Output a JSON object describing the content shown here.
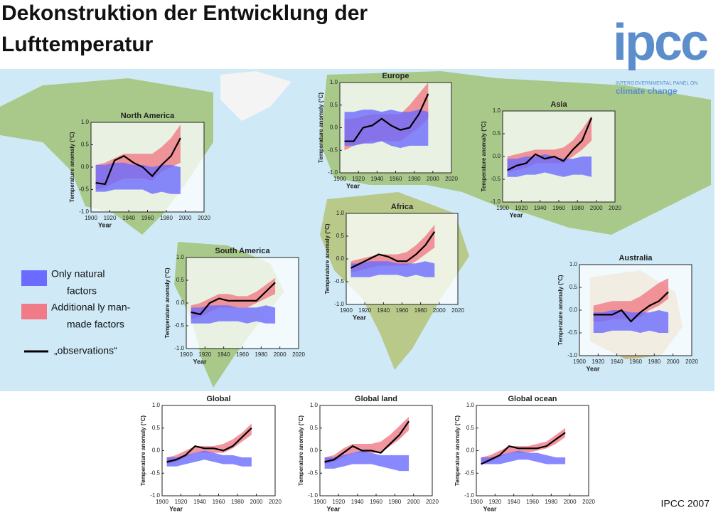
{
  "title": [
    "Dekonstruktion der Entwicklung der",
    "Lufttemperatur"
  ],
  "logo": {
    "name": "ipcc",
    "line1": "INTERGOVERNMENTAL PANEL ON",
    "line2": "climate change"
  },
  "credit": "IPCC 2007",
  "legend": [
    {
      "lines": [
        "Only natural",
        "factors"
      ],
      "color": "#6b6bff"
    },
    {
      "lines": [
        "Additional ly man-",
        "made factors"
      ],
      "color": "#f07a86"
    },
    {
      "lines": [
        "„observations“"
      ],
      "color": "#000000"
    }
  ],
  "chart_data": [
    {
      "type": "line",
      "title": "North America",
      "xlabel": "Year",
      "ylabel": "Temperature anomaly (°C)",
      "xlim": [
        1900,
        2020
      ],
      "xticks": [
        1900,
        1920,
        1940,
        1960,
        1980,
        2000,
        2020
      ],
      "ylim": [
        -1,
        1
      ],
      "yticks": [
        {
          "value": -1,
          "label": "-1.0"
        },
        {
          "value": -0.5,
          "label": "-0.5"
        },
        {
          "value": 0,
          "label": "0.0"
        },
        {
          "value": 0.5,
          "label": "0.5"
        },
        {
          "value": 1,
          "label": "1.0"
        }
      ],
      "x": [
        1905,
        1915,
        1925,
        1935,
        1945,
        1955,
        1965,
        1975,
        1985,
        1995
      ],
      "series": [
        {
          "color": "#f07a86",
          "lower": [
            -0.5,
            -0.45,
            -0.35,
            -0.25,
            -0.25,
            -0.25,
            -0.3,
            -0.1,
            0.0,
            0.1
          ],
          "upper": [
            0.05,
            0.1,
            0.2,
            0.3,
            0.3,
            0.3,
            0.3,
            0.45,
            0.65,
            0.95
          ]
        },
        {
          "color": "#6b6bff",
          "lower": [
            -0.55,
            -0.55,
            -0.5,
            -0.5,
            -0.5,
            -0.5,
            -0.6,
            -0.55,
            -0.6,
            -0.6
          ],
          "upper": [
            0.05,
            0.05,
            0.1,
            0.1,
            0.05,
            0.05,
            0.0,
            0.05,
            0.05,
            0.0
          ]
        },
        {
          "color": "#000000",
          "values": [
            -0.35,
            -0.38,
            0.15,
            0.25,
            0.1,
            0.0,
            -0.2,
            0.05,
            0.25,
            0.65
          ]
        }
      ]
    },
    {
      "type": "line",
      "title": "Europe",
      "xlabel": "Year",
      "ylabel": "Temperature anomaly (°C)",
      "xlim": [
        1900,
        2020
      ],
      "xticks": [
        1900,
        1920,
        1940,
        1960,
        1980,
        2000,
        2020
      ],
      "ylim": [
        -1,
        1
      ],
      "yticks": [
        {
          "value": -1,
          "label": "-1.0"
        },
        {
          "value": -0.5,
          "label": "-0.5"
        },
        {
          "value": 0,
          "label": "0.0"
        },
        {
          "value": 0.5,
          "label": "0.5"
        },
        {
          "value": 1,
          "label": "1.0"
        }
      ],
      "x": [
        1905,
        1915,
        1925,
        1935,
        1945,
        1955,
        1965,
        1975,
        1985,
        1995
      ],
      "series": [
        {
          "color": "#f07a86",
          "lower": [
            -0.5,
            -0.4,
            -0.35,
            -0.3,
            -0.3,
            -0.3,
            -0.3,
            -0.15,
            0.0,
            0.2
          ],
          "upper": [
            0.2,
            0.2,
            0.25,
            0.3,
            0.3,
            0.3,
            0.3,
            0.5,
            0.75,
            1.0
          ]
        },
        {
          "color": "#6b6bff",
          "lower": [
            -0.4,
            -0.4,
            -0.35,
            -0.35,
            -0.3,
            -0.4,
            -0.45,
            -0.4,
            -0.4,
            -0.4
          ],
          "upper": [
            0.35,
            0.35,
            0.4,
            0.4,
            0.35,
            0.4,
            0.35,
            0.35,
            0.4,
            0.35
          ]
        },
        {
          "color": "#000000",
          "values": [
            -0.3,
            -0.3,
            0.0,
            0.05,
            0.2,
            0.05,
            -0.05,
            0.0,
            0.3,
            0.75
          ]
        }
      ]
    },
    {
      "type": "line",
      "title": "Asia",
      "xlabel": "Year",
      "ylabel": "Temperature anomaly (°C)",
      "xlim": [
        1900,
        2020
      ],
      "xticks": [
        1900,
        1920,
        1940,
        1960,
        1980,
        2000,
        2020
      ],
      "ylim": [
        -1,
        1
      ],
      "yticks": [
        {
          "value": -1,
          "label": "-1.0"
        },
        {
          "value": -0.5,
          "label": "-0.5"
        },
        {
          "value": 0,
          "label": "0.0"
        },
        {
          "value": 0.5,
          "label": "0.5"
        },
        {
          "value": 1,
          "label": "1.0"
        }
      ],
      "x": [
        1905,
        1915,
        1925,
        1935,
        1945,
        1955,
        1965,
        1975,
        1985,
        1995
      ],
      "series": [
        {
          "color": "#f07a86",
          "lower": [
            -0.35,
            -0.3,
            -0.25,
            -0.15,
            -0.15,
            -0.15,
            -0.15,
            0.0,
            0.15,
            0.35
          ],
          "upper": [
            0.0,
            0.05,
            0.1,
            0.15,
            0.15,
            0.15,
            0.2,
            0.35,
            0.6,
            0.9
          ]
        },
        {
          "color": "#6b6bff",
          "lower": [
            -0.45,
            -0.45,
            -0.4,
            -0.4,
            -0.35,
            -0.4,
            -0.45,
            -0.4,
            -0.4,
            -0.45
          ],
          "upper": [
            -0.05,
            -0.05,
            0.0,
            0.0,
            0.05,
            0.0,
            -0.05,
            -0.05,
            0.0,
            0.0
          ]
        },
        {
          "color": "#000000",
          "values": [
            -0.3,
            -0.2,
            -0.15,
            0.05,
            -0.05,
            0.0,
            -0.1,
            0.15,
            0.35,
            0.85
          ]
        }
      ]
    },
    {
      "type": "line",
      "title": "Africa",
      "xlabel": "Year",
      "ylabel": "Temperature anomaly (°C)",
      "xlim": [
        1900,
        2020
      ],
      "xticks": [
        1900,
        1920,
        1940,
        1960,
        1980,
        2000,
        2020
      ],
      "ylim": [
        -1,
        1
      ],
      "yticks": [
        {
          "value": -1,
          "label": "-1.0"
        },
        {
          "value": -0.5,
          "label": "-0.5"
        },
        {
          "value": 0,
          "label": "0.0"
        },
        {
          "value": 0.5,
          "label": "0.5"
        },
        {
          "value": 1,
          "label": "1.0"
        }
      ],
      "x": [
        1905,
        1915,
        1925,
        1935,
        1945,
        1955,
        1965,
        1975,
        1985,
        1995
      ],
      "series": [
        {
          "color": "#f07a86",
          "lower": [
            -0.3,
            -0.25,
            -0.2,
            -0.15,
            -0.15,
            -0.15,
            -0.15,
            -0.05,
            0.1,
            0.25
          ],
          "upper": [
            -0.05,
            0.0,
            0.05,
            0.1,
            0.1,
            0.1,
            0.15,
            0.3,
            0.5,
            0.75
          ]
        },
        {
          "color": "#6b6bff",
          "lower": [
            -0.4,
            -0.4,
            -0.4,
            -0.35,
            -0.35,
            -0.35,
            -0.4,
            -0.35,
            -0.4,
            -0.4
          ],
          "upper": [
            -0.1,
            -0.1,
            -0.05,
            -0.05,
            -0.05,
            -0.1,
            -0.1,
            -0.1,
            -0.05,
            -0.1
          ]
        },
        {
          "color": "#000000",
          "values": [
            -0.2,
            -0.1,
            0.0,
            0.1,
            0.05,
            -0.05,
            -0.05,
            0.1,
            0.3,
            0.6
          ]
        }
      ]
    },
    {
      "type": "line",
      "title": "South America",
      "xlabel": "Year",
      "ylabel": "Temperature anomaly (°C)",
      "xlim": [
        1900,
        2020
      ],
      "xticks": [
        1900,
        1920,
        1940,
        1960,
        1980,
        2000,
        2020
      ],
      "ylim": [
        -1,
        1
      ],
      "yticks": [
        {
          "value": -1,
          "label": "-1.0"
        },
        {
          "value": -0.5,
          "label": "-0.5"
        },
        {
          "value": 0,
          "label": "0.0"
        },
        {
          "value": 0.5,
          "label": "0.5"
        },
        {
          "value": 1,
          "label": "1.0"
        }
      ],
      "x": [
        1905,
        1915,
        1925,
        1935,
        1945,
        1955,
        1965,
        1975,
        1985,
        1995
      ],
      "series": [
        {
          "color": "#f07a86",
          "lower": [
            -0.35,
            -0.3,
            -0.2,
            -0.1,
            -0.1,
            -0.1,
            -0.1,
            0.0,
            0.1,
            0.2
          ],
          "upper": [
            -0.05,
            0.0,
            0.1,
            0.2,
            0.2,
            0.15,
            0.15,
            0.25,
            0.4,
            0.55
          ]
        },
        {
          "color": "#6b6bff",
          "lower": [
            -0.45,
            -0.45,
            -0.45,
            -0.4,
            -0.4,
            -0.4,
            -0.45,
            -0.4,
            -0.45,
            -0.45
          ],
          "upper": [
            -0.1,
            -0.1,
            -0.05,
            -0.05,
            -0.05,
            -0.1,
            -0.1,
            -0.1,
            -0.05,
            -0.1
          ]
        },
        {
          "color": "#000000",
          "values": [
            -0.2,
            -0.25,
            0.0,
            0.1,
            0.05,
            0.05,
            0.05,
            0.05,
            0.25,
            0.45
          ]
        }
      ]
    },
    {
      "type": "line",
      "title": "Australia",
      "xlabel": "Year",
      "ylabel": "Temperature anomaly (°C)",
      "xlim": [
        1900,
        2020
      ],
      "xticks": [
        1900,
        1920,
        1940,
        1960,
        1980,
        2000,
        2020
      ],
      "ylim": [
        -1,
        1
      ],
      "yticks": [
        {
          "value": -1,
          "label": "-1.0"
        },
        {
          "value": -0.5,
          "label": "-0.5"
        },
        {
          "value": 0,
          "label": "0.0"
        },
        {
          "value": 0.5,
          "label": "0.5"
        },
        {
          "value": 1,
          "label": "1.0"
        }
      ],
      "x": [
        1915,
        1925,
        1935,
        1945,
        1955,
        1965,
        1975,
        1985,
        1995
      ],
      "series": [
        {
          "color": "#f07a86",
          "lower": [
            -0.25,
            -0.25,
            -0.2,
            -0.2,
            -0.2,
            -0.15,
            0.0,
            0.1,
            0.25
          ],
          "upper": [
            0.1,
            0.15,
            0.2,
            0.2,
            0.2,
            0.3,
            0.45,
            0.6,
            0.7
          ]
        },
        {
          "color": "#6b6bff",
          "lower": [
            -0.5,
            -0.5,
            -0.45,
            -0.45,
            -0.45,
            -0.5,
            -0.45,
            -0.5,
            -0.5
          ],
          "upper": [
            -0.05,
            -0.05,
            0.0,
            0.0,
            -0.05,
            -0.05,
            -0.05,
            0.0,
            -0.05
          ]
        },
        {
          "color": "#000000",
          "values": [
            -0.1,
            -0.1,
            -0.1,
            0.0,
            -0.25,
            -0.05,
            0.1,
            0.2,
            0.4
          ]
        }
      ]
    },
    {
      "type": "line",
      "title": "Global",
      "xlabel": "Year",
      "ylabel": "Temperature anomaly (°C)",
      "xlim": [
        1900,
        2020
      ],
      "xticks": [
        1900,
        1920,
        1940,
        1960,
        1980,
        2000,
        2020
      ],
      "ylim": [
        -1,
        1
      ],
      "yticks": [
        {
          "value": -1,
          "label": "-1.0"
        },
        {
          "value": -0.5,
          "label": "-0.5"
        },
        {
          "value": 0,
          "label": "0.0"
        },
        {
          "value": 0.5,
          "label": "0.5"
        },
        {
          "value": 1,
          "label": "1.0"
        }
      ],
      "x": [
        1905,
        1915,
        1925,
        1935,
        1945,
        1955,
        1965,
        1975,
        1985,
        1995
      ],
      "series": [
        {
          "color": "#f07a86",
          "lower": [
            -0.3,
            -0.25,
            -0.15,
            -0.05,
            -0.05,
            -0.05,
            -0.05,
            0.05,
            0.2,
            0.35
          ],
          "upper": [
            -0.15,
            -0.1,
            0.0,
            0.1,
            0.1,
            0.1,
            0.15,
            0.25,
            0.4,
            0.6
          ]
        },
        {
          "color": "#6b6bff",
          "lower": [
            -0.35,
            -0.35,
            -0.3,
            -0.25,
            -0.2,
            -0.25,
            -0.3,
            -0.3,
            -0.35,
            -0.35
          ],
          "upper": [
            -0.15,
            -0.15,
            -0.1,
            -0.05,
            0.0,
            -0.05,
            -0.1,
            -0.1,
            -0.15,
            -0.15
          ]
        },
        {
          "color": "#000000",
          "values": [
            -0.25,
            -0.2,
            -0.1,
            0.1,
            0.05,
            0.05,
            0.0,
            0.1,
            0.3,
            0.5
          ]
        }
      ]
    },
    {
      "type": "line",
      "title": "Global land",
      "xlabel": "Year",
      "ylabel": "Temperature anomaly (°C)",
      "xlim": [
        1900,
        2020
      ],
      "xticks": [
        1900,
        1920,
        1940,
        1960,
        1980,
        2000,
        2020
      ],
      "ylim": [
        -1,
        1
      ],
      "yticks": [
        {
          "value": -1,
          "label": "-1.0"
        },
        {
          "value": -0.5,
          "label": "-0.5"
        },
        {
          "value": 0,
          "label": "0.0"
        },
        {
          "value": 0.5,
          "label": "0.5"
        },
        {
          "value": 1,
          "label": "1.0"
        }
      ],
      "x": [
        1905,
        1915,
        1925,
        1935,
        1945,
        1955,
        1965,
        1975,
        1985,
        1995
      ],
      "series": [
        {
          "color": "#f07a86",
          "lower": [
            -0.3,
            -0.25,
            -0.15,
            -0.05,
            -0.05,
            -0.05,
            -0.05,
            0.1,
            0.25,
            0.45
          ],
          "upper": [
            -0.15,
            -0.1,
            0.05,
            0.15,
            0.15,
            0.15,
            0.2,
            0.35,
            0.55,
            0.75
          ]
        },
        {
          "color": "#6b6bff",
          "lower": [
            -0.4,
            -0.4,
            -0.35,
            -0.3,
            -0.3,
            -0.3,
            -0.35,
            -0.4,
            -0.45,
            -0.45
          ],
          "upper": [
            -0.15,
            -0.15,
            -0.1,
            -0.05,
            0.0,
            -0.05,
            -0.1,
            -0.1,
            -0.1,
            -0.1
          ]
        },
        {
          "color": "#000000",
          "values": [
            -0.25,
            -0.2,
            -0.05,
            0.1,
            0.0,
            0.0,
            -0.05,
            0.15,
            0.35,
            0.65
          ]
        }
      ]
    },
    {
      "type": "line",
      "title": "Global ocean",
      "xlabel": "Year",
      "ylabel": "Temperature anomaly (°C)",
      "xlim": [
        1900,
        2020
      ],
      "xticks": [
        1900,
        1920,
        1940,
        1960,
        1980,
        2000,
        2020
      ],
      "ylim": [
        -1,
        1
      ],
      "yticks": [
        {
          "value": -1,
          "label": "-1.0"
        },
        {
          "value": -0.5,
          "label": "-0.5"
        },
        {
          "value": 0,
          "label": "0.0"
        },
        {
          "value": 0.5,
          "label": "0.5"
        },
        {
          "value": 1,
          "label": "1.0"
        }
      ],
      "x": [
        1905,
        1915,
        1925,
        1935,
        1945,
        1955,
        1965,
        1975,
        1985,
        1995
      ],
      "series": [
        {
          "color": "#f07a86",
          "lower": [
            -0.3,
            -0.25,
            -0.15,
            -0.05,
            -0.05,
            -0.05,
            0.0,
            0.05,
            0.15,
            0.3
          ],
          "upper": [
            -0.15,
            -0.1,
            0.0,
            0.1,
            0.1,
            0.1,
            0.15,
            0.2,
            0.35,
            0.5
          ]
        },
        {
          "color": "#6b6bff",
          "lower": [
            -0.3,
            -0.3,
            -0.3,
            -0.25,
            -0.2,
            -0.2,
            -0.25,
            -0.3,
            -0.3,
            -0.3
          ],
          "upper": [
            -0.15,
            -0.15,
            -0.1,
            -0.05,
            0.0,
            -0.05,
            -0.05,
            -0.1,
            -0.15,
            -0.15
          ]
        },
        {
          "color": "#000000",
          "values": [
            -0.3,
            -0.2,
            -0.1,
            0.1,
            0.05,
            0.05,
            0.05,
            0.1,
            0.25,
            0.4
          ]
        }
      ]
    }
  ]
}
